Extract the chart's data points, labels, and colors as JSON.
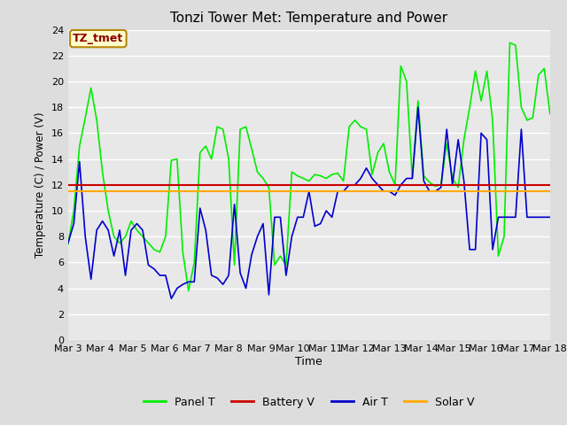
{
  "title": "Tonzi Tower Met: Temperature and Power",
  "xlabel": "Time",
  "ylabel": "Temperature (C) / Power (V)",
  "ylim": [
    0,
    24
  ],
  "annotation_text": "TZ_tmet",
  "legend_entries": [
    "Panel T",
    "Battery V",
    "Air T",
    "Solar V"
  ],
  "legend_colors": [
    "#00ee00",
    "#cc0000",
    "#0000cc",
    "#ffaa00"
  ],
  "x_tick_labels": [
    "Mar 3",
    "Mar 4",
    "Mar 5",
    "Mar 6",
    "Mar 7",
    "Mar 8",
    "Mar 9",
    "Mar 10",
    "Mar 11",
    "Mar 12",
    "Mar 13",
    "Mar 14",
    "Mar 15",
    "Mar 16",
    "Mar 17",
    "Mar 18"
  ],
  "panel_t": [
    7.4,
    10.0,
    15.0,
    17.2,
    19.5,
    17.0,
    13.0,
    10.0,
    8.0,
    7.5,
    8.0,
    9.2,
    8.5,
    8.0,
    7.5,
    7.0,
    6.8,
    8.0,
    13.9,
    14.0,
    6.8,
    3.8,
    6.0,
    14.5,
    15.0,
    14.0,
    16.5,
    16.3,
    14.0,
    5.8,
    16.3,
    16.5,
    14.8,
    13.0,
    12.5,
    11.8,
    5.8,
    6.5,
    5.8,
    13.0,
    12.7,
    12.5,
    12.3,
    12.8,
    12.7,
    12.5,
    12.8,
    12.9,
    12.3,
    16.5,
    17.0,
    16.5,
    16.3,
    12.8,
    14.5,
    15.2,
    13.0,
    12.0,
    21.2,
    20.0,
    12.5,
    18.5,
    12.7,
    12.2,
    11.9,
    12.0,
    15.2,
    12.5,
    11.8,
    15.5,
    18.0,
    20.8,
    18.5,
    20.8,
    17.0,
    6.5,
    8.0,
    23.0,
    22.8,
    18.0,
    17.0,
    17.2,
    20.5,
    21.0,
    17.5
  ],
  "battery_v": [
    12.0,
    12.0,
    12.0,
    12.0,
    12.0,
    12.0,
    12.0,
    12.0,
    12.0,
    12.0,
    12.0,
    12.0,
    12.0,
    12.0,
    12.0,
    12.0,
    12.0,
    12.0,
    12.0,
    12.0,
    12.0,
    12.0,
    12.0,
    12.0,
    12.0,
    12.0,
    12.0,
    12.0,
    12.0,
    12.0,
    12.0,
    12.0,
    12.0,
    12.0,
    12.0,
    12.0,
    12.0,
    12.0,
    12.0,
    12.0,
    12.0,
    12.0,
    12.0,
    12.0,
    12.0,
    12.0,
    12.0,
    12.0,
    12.0,
    12.0,
    12.0,
    12.0,
    12.0,
    12.0,
    12.0,
    12.0,
    12.0,
    12.0,
    12.0,
    12.0,
    12.0,
    12.0,
    12.0,
    12.0,
    12.0,
    12.0,
    12.0,
    12.0,
    12.0,
    12.0,
    12.0,
    12.0,
    12.0,
    12.0,
    12.0,
    12.0,
    12.0,
    12.0,
    12.0,
    12.0,
    12.0,
    12.0,
    12.0,
    12.0,
    12.0
  ],
  "solar_v": [
    11.5,
    11.5,
    11.5,
    11.5,
    11.5,
    11.5,
    11.5,
    11.5,
    11.5,
    11.5,
    11.5,
    11.5,
    11.5,
    11.5,
    11.5,
    11.5,
    11.5,
    11.5,
    11.5,
    11.5,
    11.5,
    11.5,
    11.5,
    11.5,
    11.5,
    11.5,
    11.5,
    11.5,
    11.5,
    11.5,
    11.5,
    11.5,
    11.5,
    11.5,
    11.5,
    11.5,
    11.5,
    11.5,
    11.5,
    11.5,
    11.5,
    11.5,
    11.5,
    11.5,
    11.5,
    11.5,
    11.5,
    11.5,
    11.5,
    11.5,
    11.5,
    11.5,
    11.5,
    11.5,
    11.5,
    11.5,
    11.5,
    11.5,
    11.5,
    11.5,
    11.5,
    11.5,
    11.5,
    11.5,
    11.5,
    11.5,
    11.5,
    11.5,
    11.5,
    11.5,
    11.5,
    11.5,
    11.5,
    11.5,
    11.5,
    11.5,
    11.5,
    11.5,
    11.5,
    11.5,
    11.5,
    11.5,
    11.5,
    11.5,
    11.5
  ],
  "air_t": [
    7.5,
    9.0,
    13.8,
    8.0,
    4.7,
    8.5,
    9.2,
    8.5,
    6.5,
    8.5,
    5.0,
    8.5,
    9.0,
    8.5,
    5.8,
    5.5,
    5.0,
    5.0,
    3.2,
    4.0,
    4.3,
    4.5,
    4.5,
    10.2,
    8.5,
    5.0,
    4.8,
    4.3,
    5.0,
    10.5,
    5.2,
    4.0,
    6.6,
    8.0,
    9.0,
    3.5,
    9.5,
    9.5,
    5.0,
    8.0,
    9.5,
    9.5,
    11.5,
    8.8,
    9.0,
    10.0,
    9.5,
    11.5,
    11.5,
    12.0,
    12.0,
    12.5,
    13.3,
    12.5,
    12.0,
    11.5,
    11.5,
    11.2,
    12.0,
    12.5,
    12.5,
    18.0,
    12.3,
    11.5,
    11.5,
    11.8,
    16.3,
    12.0,
    15.5,
    12.3,
    7.0,
    7.0,
    16.0,
    15.5,
    7.0,
    9.5,
    9.5,
    9.5,
    9.5,
    16.3,
    9.5,
    9.5,
    9.5,
    9.5,
    9.5
  ]
}
